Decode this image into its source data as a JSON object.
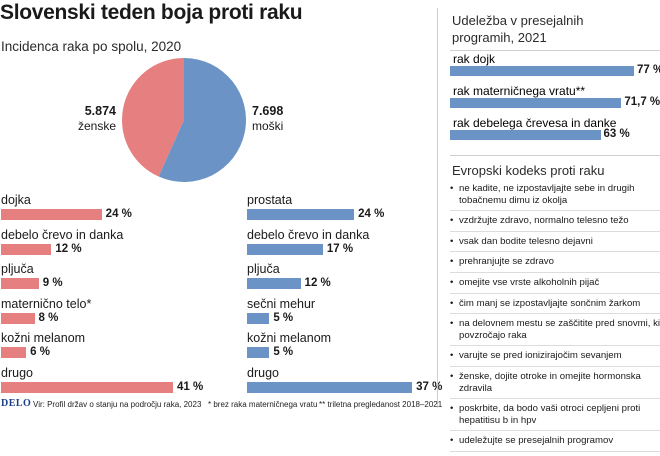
{
  "title": "Slovenski teden boja proti raku",
  "subtitle": "Incidenca raka po spolu, 2020",
  "colors": {
    "women": "#e67f7f",
    "men": "#6b93c6",
    "right_bars": "#6b93c6"
  },
  "chart_data": [
    {
      "type": "pie",
      "title": "Incidenca raka po spolu, 2020",
      "slices": [
        {
          "value": 5874,
          "value_label": "5.874",
          "label": "ženske",
          "color": "#e67f7f"
        },
        {
          "value": 7698,
          "value_label": "7.698",
          "label": "moški",
          "color": "#6b93c6"
        }
      ]
    },
    {
      "type": "bar",
      "orientation": "horizontal",
      "name": "ženske",
      "categories": [
        "dojka",
        "debelo črevo in danka",
        "pljuča",
        "maternično telo*",
        "kožni melanom",
        "drugo"
      ],
      "values": [
        24,
        12,
        9,
        8,
        6,
        41
      ],
      "value_labels": [
        "24 %",
        "12 %",
        "9 %",
        "8 %",
        "6 %",
        "41 %"
      ],
      "xlim": [
        0,
        41
      ],
      "color": "#e67f7f"
    },
    {
      "type": "bar",
      "orientation": "horizontal",
      "name": "moški",
      "categories": [
        "prostata",
        "debelo črevo in danka",
        "pljuča",
        "sečni mehur",
        "kožni melanom",
        "drugo"
      ],
      "values": [
        24,
        17,
        12,
        5,
        5,
        37
      ],
      "value_labels": [
        "24 %",
        "17 %",
        "12 %",
        "5 %",
        "5 %",
        "37 %"
      ],
      "xlim": [
        0,
        41
      ],
      "color": "#6b93c6"
    },
    {
      "type": "bar",
      "orientation": "horizontal",
      "title": "Udeležba v presejalnih programih, 2021",
      "categories": [
        "rak dojk",
        "rak materničnega vratu**",
        "rak debelega črevesa in danke"
      ],
      "values": [
        77,
        71.7,
        63
      ],
      "value_labels": [
        "77 %",
        "71,7 %",
        "63 %"
      ],
      "xlim": [
        0,
        77
      ],
      "color": "#6b93c6"
    }
  ],
  "right": {
    "screening_title": "Udeležba v presejalnih programih, 2021",
    "code_title": "Evropski kodeks proti raku",
    "code_items": [
      "ne kadite, ne izpostavljajte sebe in drugih tobačnemu dimu iz okolja",
      "vzdržujte zdravo, normalno telesno težo",
      "vsak dan bodite telesno dejavni",
      "prehranjujte se zdravo",
      "omejite vse vrste alkoholnih pijač",
      "čim manj se izpostavljajte sončnim žarkom",
      "na delovnem mestu se zaščitite pred snovmi, ki povzročajo raka",
      "varujte se pred ionizirajočim sevanjem",
      "ženske, dojite otroke in omejite hormonska zdravila",
      "poskrbite, da bodo vaši otroci cepljeni proti hepatitisu b in hpv",
      "udeležujte se presejalnih programov"
    ]
  },
  "footer": {
    "logo": "DELO",
    "source": "Vir: Profil držav o stanju na področju raka, 2023",
    "note1": "* brez raka materničnega vratu",
    "note2": "** triletna pregledanost 2018–2021"
  }
}
